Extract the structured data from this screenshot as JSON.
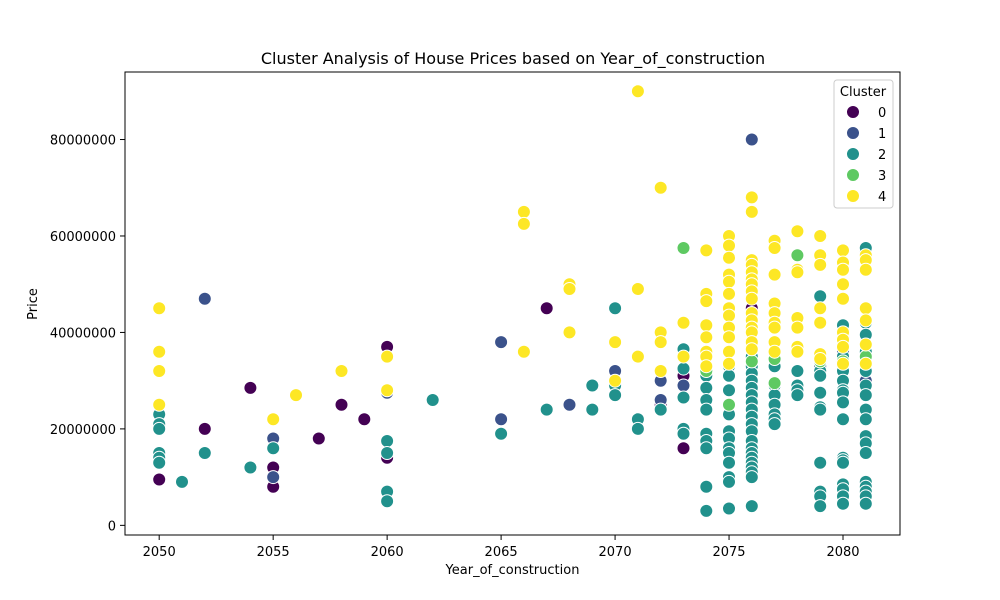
{
  "chart_data": {
    "type": "scatter",
    "title": "Cluster Analysis of House Prices based on Year_of_construction",
    "xlabel": "Year_of_construction",
    "ylabel": "Price",
    "xlim": [
      2048.5,
      2082.5
    ],
    "ylim": [
      -2000000,
      94000000
    ],
    "x_ticks": [
      2050,
      2055,
      2060,
      2065,
      2070,
      2075,
      2080
    ],
    "y_ticks": [
      0,
      20000000,
      40000000,
      60000000,
      80000000
    ],
    "x_tick_labels": [
      "2050",
      "2055",
      "2060",
      "2065",
      "2070",
      "2075",
      "2080"
    ],
    "y_tick_labels": [
      "0",
      "20000000",
      "40000000",
      "60000000",
      "80000000"
    ],
    "grid": false,
    "legend": {
      "title": "Cluster",
      "position": "top-right"
    },
    "series": [
      {
        "name": "0",
        "color": "#440154",
        "points": [
          [
            2050,
            9500000
          ],
          [
            2052,
            20000000
          ],
          [
            2054,
            28500000
          ],
          [
            2055,
            12000000
          ],
          [
            2055,
            8000000
          ],
          [
            2057,
            18000000
          ],
          [
            2058,
            25000000
          ],
          [
            2059,
            22000000
          ],
          [
            2060,
            37000000
          ],
          [
            2060,
            14000000
          ],
          [
            2067,
            45000000
          ],
          [
            2072,
            25000000
          ],
          [
            2073,
            16000000
          ],
          [
            2073,
            31000000
          ],
          [
            2076,
            45000000
          ]
        ]
      },
      {
        "name": "1",
        "color": "#3b528b",
        "points": [
          [
            2052,
            47000000
          ],
          [
            2055,
            18000000
          ],
          [
            2055,
            10000000
          ],
          [
            2060,
            27500000
          ],
          [
            2065,
            38000000
          ],
          [
            2065,
            22000000
          ],
          [
            2068,
            25000000
          ],
          [
            2070,
            32000000
          ],
          [
            2072,
            30000000
          ],
          [
            2072,
            26000000
          ],
          [
            2073,
            29000000
          ],
          [
            2076,
            80000000
          ],
          [
            2076,
            44000000
          ],
          [
            2078,
            28000000
          ],
          [
            2079,
            33000000
          ],
          [
            2080,
            36000000
          ],
          [
            2081,
            57000000
          ],
          [
            2081,
            30000000
          ]
        ]
      },
      {
        "name": "2",
        "color": "#21918c",
        "points": [
          [
            2050,
            23000000
          ],
          [
            2050,
            21000000
          ],
          [
            2050,
            20000000
          ],
          [
            2050,
            15000000
          ],
          [
            2050,
            14000000
          ],
          [
            2050,
            13000000
          ],
          [
            2051,
            9000000
          ],
          [
            2052,
            15000000
          ],
          [
            2054,
            12000000
          ],
          [
            2055,
            16000000
          ],
          [
            2060,
            17500000
          ],
          [
            2060,
            15000000
          ],
          [
            2060,
            7000000
          ],
          [
            2060,
            5000000
          ],
          [
            2062,
            26000000
          ],
          [
            2065,
            19000000
          ],
          [
            2067,
            24000000
          ],
          [
            2069,
            29000000
          ],
          [
            2069,
            24000000
          ],
          [
            2070,
            45000000
          ],
          [
            2070,
            29000000
          ],
          [
            2070,
            27000000
          ],
          [
            2071,
            22000000
          ],
          [
            2071,
            20000000
          ],
          [
            2072,
            24000000
          ],
          [
            2073,
            36500000
          ],
          [
            2073,
            32500000
          ],
          [
            2073,
            26500000
          ],
          [
            2073,
            20000000
          ],
          [
            2073,
            19000000
          ],
          [
            2074,
            31000000
          ],
          [
            2074,
            28500000
          ],
          [
            2074,
            26000000
          ],
          [
            2074,
            24000000
          ],
          [
            2074,
            19000000
          ],
          [
            2074,
            17500000
          ],
          [
            2074,
            16000000
          ],
          [
            2074,
            8000000
          ],
          [
            2074,
            3000000
          ],
          [
            2075,
            33000000
          ],
          [
            2075,
            31000000
          ],
          [
            2075,
            28000000
          ],
          [
            2075,
            25000000
          ],
          [
            2075,
            23000000
          ],
          [
            2075,
            19500000
          ],
          [
            2075,
            18000000
          ],
          [
            2075,
            16000000
          ],
          [
            2075,
            15000000
          ],
          [
            2075,
            13000000
          ],
          [
            2075,
            10000000
          ],
          [
            2075,
            9000000
          ],
          [
            2075,
            3500000
          ],
          [
            2076,
            35000000
          ],
          [
            2076,
            33000000
          ],
          [
            2076,
            31500000
          ],
          [
            2076,
            30000000
          ],
          [
            2076,
            28500000
          ],
          [
            2076,
            27000000
          ],
          [
            2076,
            25500000
          ],
          [
            2076,
            24000000
          ],
          [
            2076,
            22500000
          ],
          [
            2076,
            21000000
          ],
          [
            2076,
            19500000
          ],
          [
            2076,
            17500000
          ],
          [
            2076,
            16000000
          ],
          [
            2076,
            15000000
          ],
          [
            2076,
            14000000
          ],
          [
            2076,
            13000000
          ],
          [
            2076,
            12000000
          ],
          [
            2076,
            11000000
          ],
          [
            2076,
            10000000
          ],
          [
            2076,
            4000000
          ],
          [
            2077,
            33000000
          ],
          [
            2077,
            29000000
          ],
          [
            2077,
            27000000
          ],
          [
            2077,
            25000000
          ],
          [
            2077,
            23000000
          ],
          [
            2077,
            22000000
          ],
          [
            2077,
            21000000
          ],
          [
            2078,
            32000000
          ],
          [
            2078,
            29000000
          ],
          [
            2078,
            28000000
          ],
          [
            2078,
            27000000
          ],
          [
            2079,
            47500000
          ],
          [
            2079,
            32000000
          ],
          [
            2079,
            31000000
          ],
          [
            2079,
            27500000
          ],
          [
            2079,
            24500000
          ],
          [
            2079,
            24000000
          ],
          [
            2079,
            13000000
          ],
          [
            2079,
            7000000
          ],
          [
            2079,
            6000000
          ],
          [
            2079,
            4000000
          ],
          [
            2080,
            41500000
          ],
          [
            2080,
            35000000
          ],
          [
            2080,
            32000000
          ],
          [
            2080,
            30000000
          ],
          [
            2080,
            28000000
          ],
          [
            2080,
            27500000
          ],
          [
            2080,
            25500000
          ],
          [
            2080,
            22000000
          ],
          [
            2080,
            14000000
          ],
          [
            2080,
            13500000
          ],
          [
            2080,
            13000000
          ],
          [
            2080,
            8500000
          ],
          [
            2080,
            7500000
          ],
          [
            2080,
            6000000
          ],
          [
            2080,
            4500000
          ],
          [
            2081,
            57500000
          ],
          [
            2081,
            42000000
          ],
          [
            2081,
            39500000
          ],
          [
            2081,
            36000000
          ],
          [
            2081,
            34000000
          ],
          [
            2081,
            32000000
          ],
          [
            2081,
            29000000
          ],
          [
            2081,
            27000000
          ],
          [
            2081,
            24000000
          ],
          [
            2081,
            22000000
          ],
          [
            2081,
            18500000
          ],
          [
            2081,
            17000000
          ],
          [
            2081,
            15000000
          ],
          [
            2081,
            9000000
          ],
          [
            2081,
            8000000
          ],
          [
            2081,
            7000000
          ],
          [
            2081,
            6000000
          ],
          [
            2081,
            4500000
          ]
        ]
      },
      {
        "name": "3",
        "color": "#5ec962",
        "points": [
          [
            2073,
            57500000
          ],
          [
            2074,
            32000000
          ],
          [
            2075,
            58000000
          ],
          [
            2075,
            25000000
          ],
          [
            2076,
            34000000
          ],
          [
            2077,
            34500000
          ],
          [
            2077,
            29500000
          ],
          [
            2078,
            56000000
          ],
          [
            2079,
            34000000
          ],
          [
            2080,
            34000000
          ],
          [
            2081,
            35000000
          ]
        ]
      },
      {
        "name": "4",
        "color": "#fde725",
        "points": [
          [
            2050,
            45000000
          ],
          [
            2050,
            36000000
          ],
          [
            2050,
            32000000
          ],
          [
            2050,
            25000000
          ],
          [
            2055,
            22000000
          ],
          [
            2056,
            27000000
          ],
          [
            2058,
            32000000
          ],
          [
            2060,
            35000000
          ],
          [
            2060,
            28000000
          ],
          [
            2066,
            65000000
          ],
          [
            2066,
            62500000
          ],
          [
            2066,
            36000000
          ],
          [
            2068,
            50000000
          ],
          [
            2068,
            49000000
          ],
          [
            2068,
            40000000
          ],
          [
            2070,
            38000000
          ],
          [
            2070,
            30000000
          ],
          [
            2071,
            90000000
          ],
          [
            2071,
            49000000
          ],
          [
            2071,
            35000000
          ],
          [
            2072,
            70000000
          ],
          [
            2072,
            40000000
          ],
          [
            2072,
            38000000
          ],
          [
            2072,
            32000000
          ],
          [
            2073,
            42000000
          ],
          [
            2073,
            35000000
          ],
          [
            2074,
            57000000
          ],
          [
            2074,
            48000000
          ],
          [
            2074,
            46500000
          ],
          [
            2074,
            41500000
          ],
          [
            2074,
            39000000
          ],
          [
            2074,
            36000000
          ],
          [
            2074,
            35000000
          ],
          [
            2074,
            33000000
          ],
          [
            2075,
            60000000
          ],
          [
            2075,
            58000000
          ],
          [
            2075,
            55500000
          ],
          [
            2075,
            52000000
          ],
          [
            2075,
            50500000
          ],
          [
            2075,
            48000000
          ],
          [
            2075,
            45000000
          ],
          [
            2075,
            43500000
          ],
          [
            2075,
            41000000
          ],
          [
            2075,
            39000000
          ],
          [
            2075,
            36000000
          ],
          [
            2075,
            33500000
          ],
          [
            2076,
            68000000
          ],
          [
            2076,
            65000000
          ],
          [
            2076,
            55000000
          ],
          [
            2076,
            54000000
          ],
          [
            2076,
            52500000
          ],
          [
            2076,
            51000000
          ],
          [
            2076,
            50000000
          ],
          [
            2076,
            48500000
          ],
          [
            2076,
            47000000
          ],
          [
            2076,
            44000000
          ],
          [
            2076,
            42500000
          ],
          [
            2076,
            41000000
          ],
          [
            2076,
            40000000
          ],
          [
            2076,
            38000000
          ],
          [
            2076,
            36500000
          ],
          [
            2077,
            59000000
          ],
          [
            2077,
            57500000
          ],
          [
            2077,
            52000000
          ],
          [
            2077,
            46000000
          ],
          [
            2077,
            44000000
          ],
          [
            2077,
            42000000
          ],
          [
            2077,
            41000000
          ],
          [
            2077,
            38000000
          ],
          [
            2077,
            36000000
          ],
          [
            2078,
            61000000
          ],
          [
            2078,
            53000000
          ],
          [
            2078,
            52500000
          ],
          [
            2078,
            43000000
          ],
          [
            2078,
            41000000
          ],
          [
            2078,
            37000000
          ],
          [
            2078,
            36000000
          ],
          [
            2079,
            60000000
          ],
          [
            2079,
            56000000
          ],
          [
            2079,
            54000000
          ],
          [
            2079,
            45000000
          ],
          [
            2079,
            42000000
          ],
          [
            2079,
            35500000
          ],
          [
            2079,
            34500000
          ],
          [
            2080,
            57000000
          ],
          [
            2080,
            54500000
          ],
          [
            2080,
            53000000
          ],
          [
            2080,
            50000000
          ],
          [
            2080,
            47000000
          ],
          [
            2080,
            40000000
          ],
          [
            2080,
            38500000
          ],
          [
            2080,
            37000000
          ],
          [
            2080,
            33500000
          ],
          [
            2081,
            56000000
          ],
          [
            2081,
            55000000
          ],
          [
            2081,
            53000000
          ],
          [
            2081,
            45000000
          ],
          [
            2081,
            42500000
          ],
          [
            2081,
            37500000
          ],
          [
            2081,
            33500000
          ]
        ]
      }
    ]
  }
}
